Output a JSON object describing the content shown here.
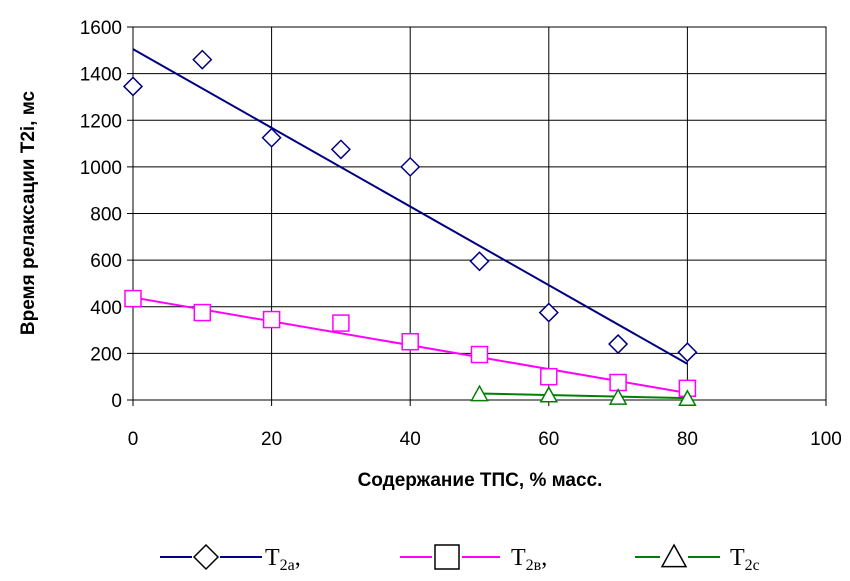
{
  "chart_data": {
    "type": "scatter",
    "xlabel": "Содержание ТПС, % масс.",
    "ylabel": "Время релаксации Т2i, мс",
    "xlim": [
      0,
      100
    ],
    "ylim": [
      0,
      1600
    ],
    "xticks": [
      "0",
      "20",
      "40",
      "60",
      "80",
      "100"
    ],
    "yticks": [
      "0",
      "200",
      "400",
      "600",
      "800",
      "1000",
      "1200",
      "1400",
      "1600"
    ],
    "grid": true,
    "legend_position": "bottom",
    "series": [
      {
        "name": "T2a",
        "legend_main": "T",
        "legend_sub": "2a",
        "legend_suffix": ",",
        "marker": "diamond",
        "color": "#000080",
        "x": [
          0,
          10,
          20,
          30,
          40,
          50,
          60,
          70,
          80
        ],
        "y": [
          1345,
          1460,
          1125,
          1075,
          1000,
          595,
          375,
          240,
          205
        ],
        "trend": {
          "x": [
            0,
            80
          ],
          "y": [
            1505,
            155
          ]
        }
      },
      {
        "name": "T2в",
        "legend_main": "T",
        "legend_sub": "2в",
        "legend_suffix": ",",
        "marker": "square",
        "color": "#ff00ff",
        "x": [
          0,
          10,
          20,
          30,
          40,
          50,
          60,
          70,
          80
        ],
        "y": [
          435,
          375,
          345,
          330,
          250,
          195,
          100,
          75,
          50
        ],
        "trend": {
          "x": [
            0,
            80
          ],
          "y": [
            440,
            30
          ]
        }
      },
      {
        "name": "T2c",
        "legend_main": "T",
        "legend_sub": "2c",
        "legend_suffix": "",
        "marker": "triangle",
        "color": "#008000",
        "x": [
          50,
          60,
          70,
          80
        ],
        "y": [
          25,
          20,
          10,
          5
        ],
        "trend": {
          "x": [
            50,
            80
          ],
          "y": [
            28,
            8
          ]
        }
      }
    ]
  }
}
